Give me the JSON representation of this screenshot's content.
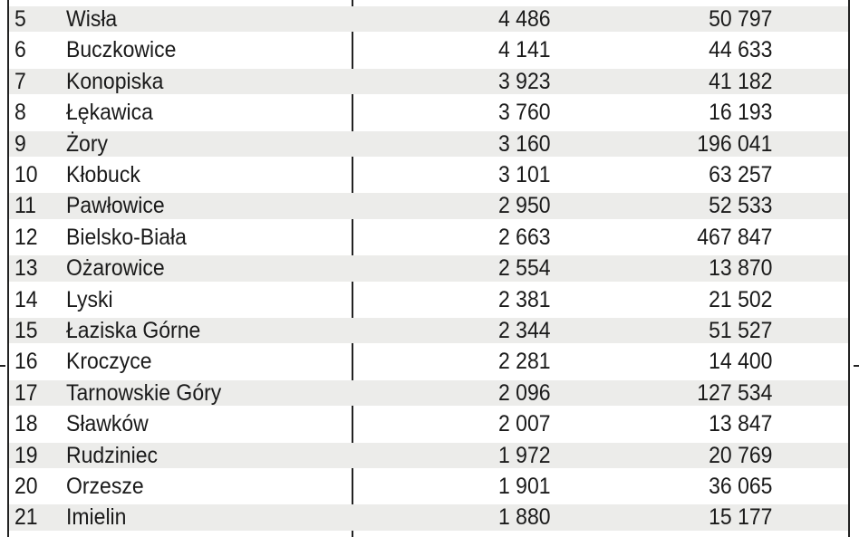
{
  "table": {
    "rows": [
      {
        "rank": "5",
        "name": "Wisła",
        "a": "4 486",
        "b": "50 797"
      },
      {
        "rank": "6",
        "name": "Buczkowice",
        "a": "4 141",
        "b": "44 633"
      },
      {
        "rank": "7",
        "name": "Konopiska",
        "a": "3 923",
        "b": "41 182"
      },
      {
        "rank": "8",
        "name": "Łękawica",
        "a": "3 760",
        "b": "16 193"
      },
      {
        "rank": "9",
        "name": "Żory",
        "a": "3 160",
        "b": "196 041"
      },
      {
        "rank": "10",
        "name": "Kłobuck",
        "a": "3 101",
        "b": "63 257"
      },
      {
        "rank": "11",
        "name": "Pawłowice",
        "a": "2 950",
        "b": "52 533"
      },
      {
        "rank": "12",
        "name": "Bielsko-Biała",
        "a": "2 663",
        "b": "467 847"
      },
      {
        "rank": "13",
        "name": "Ożarowice",
        "a": "2 554",
        "b": "13 870"
      },
      {
        "rank": "14",
        "name": "Lyski",
        "a": "2 381",
        "b": "21 502"
      },
      {
        "rank": "15",
        "name": "Łaziska Górne",
        "a": "2 344",
        "b": "51 527"
      },
      {
        "rank": "16",
        "name": "Kroczyce",
        "a": "2 281",
        "b": "14 400"
      },
      {
        "rank": "17",
        "name": "Tarnowskie Góry",
        "a": "2 096",
        "b": "127 534"
      },
      {
        "rank": "18",
        "name": "Sławków",
        "a": "2 007",
        "b": "13 847"
      },
      {
        "rank": "19",
        "name": "Rudziniec",
        "a": "1 972",
        "b": "20 769"
      },
      {
        "rank": "20",
        "name": "Orzesze",
        "a": "1 901",
        "b": "36 065"
      },
      {
        "rank": "21",
        "name": "Imielin",
        "a": "1 880",
        "b": "15 177"
      }
    ],
    "colors": {
      "shade": "#ececea",
      "rule": "#222222",
      "text": "#1a1a1a"
    }
  }
}
